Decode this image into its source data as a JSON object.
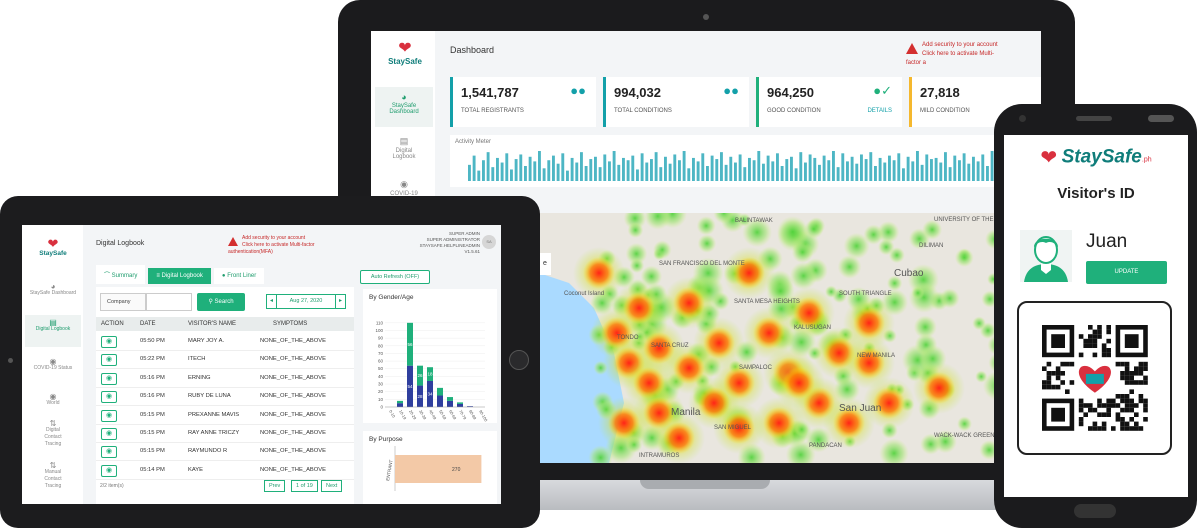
{
  "laptop": {
    "brand": "StaySafe",
    "page_title": "Dashboard",
    "alert_line1": "Add security to your account",
    "alert_line2": "Click here to activate Multi-factor a",
    "nav": [
      {
        "label1": "StaySafe",
        "label2": "Dashboard",
        "icon": "gauge-icon"
      },
      {
        "label1": "Digital",
        "label2": "Logbook",
        "icon": "clipboard-icon"
      },
      {
        "label1": "COVID-19",
        "label2": "",
        "icon": "globe-icon"
      }
    ],
    "stats": [
      {
        "value": "1,541,787",
        "label": "TOTAL REGISTRANTS",
        "icon": "users-icon",
        "link": ""
      },
      {
        "value": "994,032",
        "label": "TOTAL CONDITIONS",
        "icon": "users-icon",
        "link": ""
      },
      {
        "value": "964,250",
        "label": "GOOD CONDITION",
        "icon": "user-check-icon",
        "link": "DETAILS"
      },
      {
        "value": "27,818",
        "label": "MILD CONDITION",
        "icon": "user-warn-icon",
        "link": ""
      }
    ],
    "activity_title": "Activity Meter",
    "map_labels": [
      "BALINTAWAK",
      "UNIVERSITY OF THE PHILIPPINES",
      "DILIMAN",
      "SAN FRANCISCO DEL MONTE",
      "SOUTH TRIANGLE",
      "Cubao",
      "SANTA MESA HEIGHTS",
      "KALUSUGAN",
      "NEW MANILA",
      "SANTA CRUZ",
      "SAMPALOC",
      "Manila",
      "San Juan",
      "SAN MIGUEL",
      "WACK-WACK GREENHILLS",
      "INTRAMUROS",
      "PANDACAN",
      "TONDO",
      "Coconut Island"
    ],
    "map_button": "e"
  },
  "tablet": {
    "brand": "StaySafe",
    "page_title": "Digital Logbook",
    "alert_line1": "Add security to your account",
    "alert_line2": "Click here to activate Multi-factor authentication(MFA)",
    "admin_line1": "SUPER ADMIN",
    "admin_line2": "SUPER ADMINISTRATOR",
    "admin_line3": "STAYSAFE.HELPLINEADMIN V1.5.61",
    "avatar": "SA",
    "nav": [
      {
        "label": "StaySafe Dashboard",
        "icon": "gauge-icon"
      },
      {
        "label": "Digital Logbook",
        "icon": "clipboard-icon"
      },
      {
        "label": "COVID-19 Status",
        "icon": "globe-icon"
      },
      {
        "label": "World",
        "icon": "globe-icon"
      },
      {
        "label": "Digital Contact Tracing",
        "icon": "trace-icon"
      },
      {
        "label": "Manual Contact Tracing",
        "icon": "trace-icon"
      }
    ],
    "tabs": [
      "Summary",
      "Digital Logbook",
      "Front Liner"
    ],
    "auto_refresh": "Auto Refresh (OFF)",
    "search_field_label": "Company",
    "search_button": "Search",
    "date": "Aug 27, 2020",
    "columns": [
      "ACTION",
      "DATE",
      "VISITOR'S NAME",
      "SYMPTOMS"
    ],
    "rows": [
      {
        "time": "05:50 PM",
        "name": "MARY JOY A.",
        "symptoms": "NONE_OF_THE_ABOVE"
      },
      {
        "time": "05:22 PM",
        "name": "ITECH",
        "symptoms": "NONE_OF_THE_ABOVE"
      },
      {
        "time": "05:16 PM",
        "name": "ERNING",
        "symptoms": "NONE_OF_THE_ABOVE"
      },
      {
        "time": "05:16 PM",
        "name": "RUBY DE LUNA",
        "symptoms": "NONE_OF_THE_ABOVE"
      },
      {
        "time": "05:15 PM",
        "name": "PREXANNE MAVIS",
        "symptoms": "NONE_OF_THE_ABOVE"
      },
      {
        "time": "05:15 PM",
        "name": "RAY ANNE TRICZY",
        "symptoms": "NONE_OF_THE_ABOVE"
      },
      {
        "time": "05:15 PM",
        "name": "RAYMUNDO R",
        "symptoms": "NONE_OF_THE_ABOVE"
      },
      {
        "time": "05:14 PM",
        "name": "KAYE",
        "symptoms": "NONE_OF_THE_ABOVE"
      }
    ],
    "footer_count": "2/2 item(s)",
    "pager": [
      "Prev",
      "1 of 19",
      "Next"
    ],
    "chart1_title": "By Gender/Age",
    "chart2_title": "By Purpose"
  },
  "phone": {
    "brand": "StaySafe",
    "brand_sub": ".ph",
    "title": "Visitor's ID",
    "name": "Juan",
    "update_button": "UPDATE"
  },
  "colors": {
    "accent": "#1fb07b",
    "teal": "#13a0a9",
    "brand_red": "#d9303e",
    "male_bar": "#2f3f9e",
    "female_bar": "#1fb07b"
  },
  "chart_data": [
    {
      "type": "bar",
      "title": "By Gender/Age",
      "categories": [
        "0-10",
        "10-19",
        "20-29",
        "30-39",
        "40-49",
        "50-59",
        "60-69",
        "70-79",
        "80-89",
        "90-100"
      ],
      "series": [
        {
          "name": "",
          "values": [
            0,
            5,
            54,
            28,
            34,
            15,
            8,
            4,
            1,
            0
          ]
        },
        {
          "name": "",
          "values": [
            0,
            3,
            56,
            26,
            18,
            10,
            5,
            2,
            0,
            0
          ]
        }
      ],
      "stacked": true,
      "yticks": [
        0,
        10,
        20,
        30,
        40,
        50,
        60,
        70,
        80,
        90,
        100,
        110
      ],
      "ylim": [
        0,
        115
      ],
      "data_labels": [
        "56",
        "54",
        "28",
        "34",
        "26",
        "18"
      ]
    },
    {
      "type": "bar",
      "title": "By Purpose",
      "orientation": "horizontal",
      "categories": [
        "ENTRANT"
      ],
      "values": [
        270
      ]
    },
    {
      "type": "bar",
      "title": "Activity Meter",
      "values": [
        14,
        22,
        9,
        18,
        25,
        12,
        20,
        16,
        24,
        10,
        19,
        23,
        13,
        21,
        17,
        26,
        11,
        18,
        22,
        15,
        24,
        9,
        20,
        16,
        25,
        13,
        19,
        21,
        12,
        23,
        17,
        26,
        14,
        20,
        18,
        22,
        10,
        24,
        16,
        19,
        25,
        12,
        21,
        15,
        23,
        18,
        26,
        11,
        20,
        17,
        24,
        13,
        22,
        19,
        25,
        14,
        21,
        16,
        23,
        12,
        20,
        18,
        26,
        15,
        22,
        17,
        24,
        13,
        19,
        21,
        11,
        25,
        16,
        23,
        20,
        14,
        22,
        18,
        26,
        12,
        24,
        17,
        21,
        15,
        23,
        19,
        25,
        13,
        20,
        16,
        22,
        18,
        24,
        11,
        21,
        17,
        26,
        14,
        23,
        19,
        20,
        16,
        25,
        12,
        22,
        18,
        24,
        15,
        21,
        17,
        23,
        13,
        26,
        19,
        20,
        14,
        22,
        16,
        25,
        18
      ]
    }
  ]
}
